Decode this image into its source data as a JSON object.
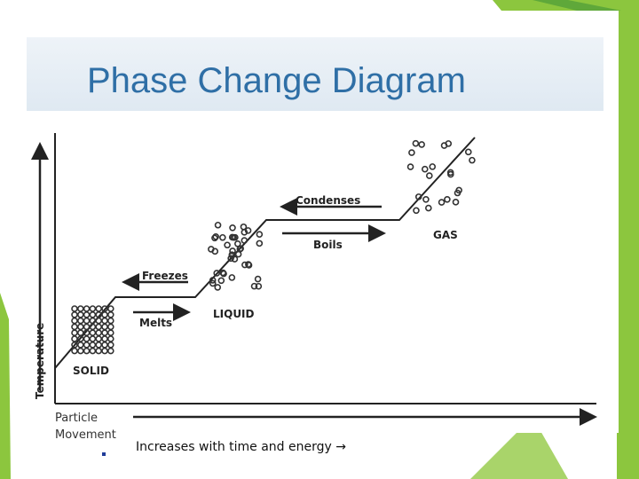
{
  "title": "Phase Change Diagram",
  "diagram": {
    "y_axis_label": "Temperature",
    "labels": {
      "condenses": "Condenses",
      "boils": "Boils",
      "freezes": "Freezes",
      "melts": "Melts",
      "liquid": "LIQUID",
      "gas": "GAS",
      "solid": "SOLID"
    }
  },
  "x_axis_label": "Particle Movement",
  "bullet": "Increases with time and energy →"
}
